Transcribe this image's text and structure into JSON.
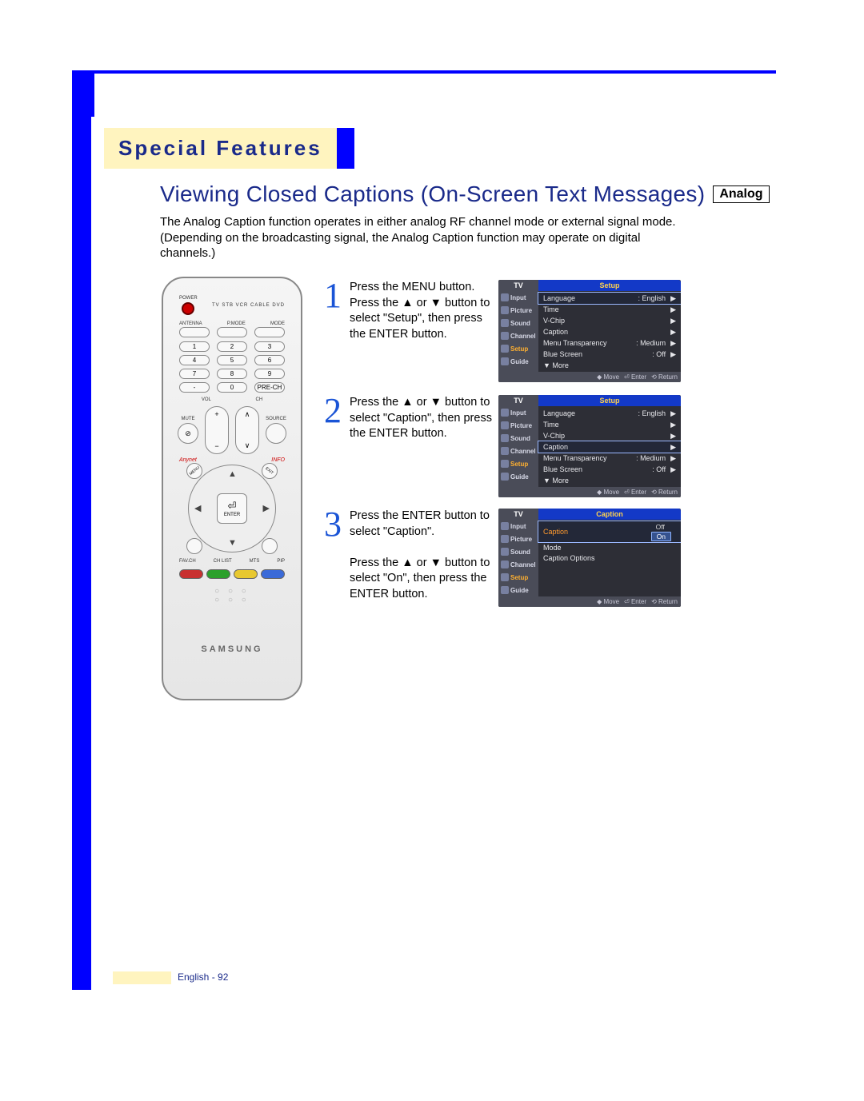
{
  "section_header": "Special Features",
  "title": "Viewing Closed Captions (On-Screen Text Messages)",
  "analog_badge": "Analog",
  "intro": "The Analog Caption function operates in either analog RF channel mode or external signal mode. (Depending on the broadcasting signal, the Analog Caption function may operate on digital channels.)",
  "steps": [
    {
      "num": "1",
      "text": "Press the MENU button.\nPress the ▲ or ▼ button to select \"Setup\", then press the ENTER button."
    },
    {
      "num": "2",
      "text": "Press the ▲ or ▼ button to select \"Caption\", then press the ENTER button."
    },
    {
      "num": "3",
      "text": "Press the ENTER button to select \"Caption\".\n\nPress the ▲ or ▼ button to select \"On\", then press the ENTER button."
    }
  ],
  "osd_common": {
    "tv_label": "TV",
    "side_items": [
      "Input",
      "Picture",
      "Sound",
      "Channel",
      "Setup",
      "Guide"
    ],
    "footer": {
      "move": "Move",
      "enter": "Enter",
      "return": "Return"
    }
  },
  "osd1": {
    "title": "Setup",
    "rows": [
      {
        "label": "Language",
        "value": ": English",
        "arrow": "▶",
        "selected": true
      },
      {
        "label": "Time",
        "value": "",
        "arrow": "▶"
      },
      {
        "label": "V-Chip",
        "value": "",
        "arrow": "▶"
      },
      {
        "label": "Caption",
        "value": "",
        "arrow": "▶"
      },
      {
        "label": "Menu Transparency",
        "value": ": Medium",
        "arrow": "▶"
      },
      {
        "label": "Blue Screen",
        "value": ": Off",
        "arrow": "▶"
      },
      {
        "label": "▼ More",
        "value": "",
        "arrow": ""
      }
    ],
    "active_side": "Setup"
  },
  "osd2": {
    "title": "Setup",
    "rows": [
      {
        "label": "Language",
        "value": ": English",
        "arrow": "▶"
      },
      {
        "label": "Time",
        "value": "",
        "arrow": "▶"
      },
      {
        "label": "V-Chip",
        "value": "",
        "arrow": "▶"
      },
      {
        "label": "Caption",
        "value": "",
        "arrow": "▶",
        "selected": true
      },
      {
        "label": "Menu Transparency",
        "value": ": Medium",
        "arrow": "▶"
      },
      {
        "label": "Blue Screen",
        "value": ": Off",
        "arrow": "▶"
      },
      {
        "label": "▼ More",
        "value": "",
        "arrow": ""
      }
    ],
    "active_side": "Setup"
  },
  "osd3": {
    "title": "Caption",
    "rows": [
      {
        "label": "Caption",
        "value_off": "Off",
        "value_on": "On",
        "selected": true,
        "orange": true
      },
      {
        "label": "Mode",
        "value": "",
        "arrow": ""
      },
      {
        "label": "Caption Options",
        "value": "",
        "arrow": ""
      }
    ],
    "active_side": "Setup"
  },
  "remote": {
    "power": "POWER",
    "src_labels": "TV  STB  VCR  CABLE  DVD",
    "top_labels": [
      "ANTENNA",
      "P.MODE",
      "MODE"
    ],
    "numbers": [
      [
        "1",
        "2",
        "3"
      ],
      [
        "4",
        "5",
        "6"
      ],
      [
        "7",
        "8",
        "9"
      ],
      [
        "-",
        "0",
        "PRE-CH"
      ]
    ],
    "mute": "MUTE",
    "source": "SOURCE",
    "vol": "VOL",
    "ch": "CH",
    "anynet": "Anynet",
    "info": "INFO",
    "menu": "MENU",
    "exit": "EXIT",
    "enter": "ENTER",
    "mute_icon": "⊘",
    "bottom_labels": [
      "FAV.CH",
      "CH LIST",
      "MTS",
      "PIP"
    ],
    "brand": "SAMSUNG",
    "colors": [
      "#c83030",
      "#2ca02c",
      "#e8c830",
      "#3a6ad8"
    ]
  },
  "footer": "English - 92"
}
